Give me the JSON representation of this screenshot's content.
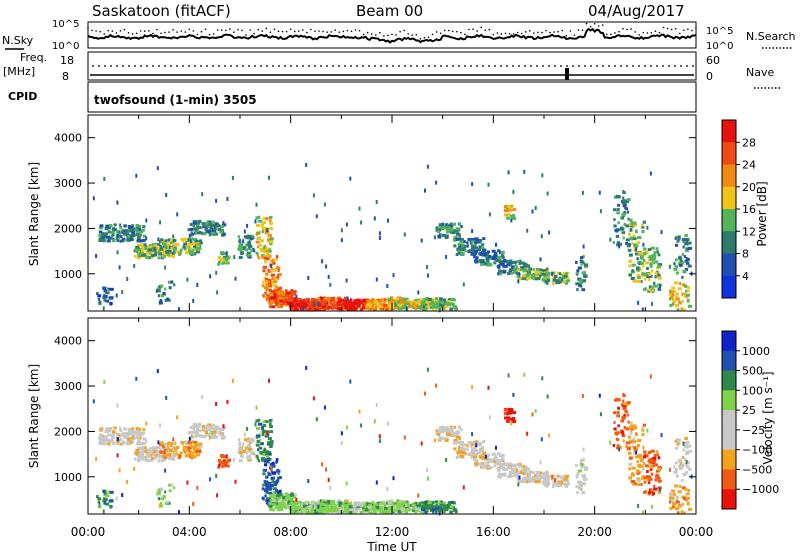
{
  "header": {
    "site": "Saskatoon (fitACF)",
    "beam": "Beam 00",
    "date": "04/Aug/2017"
  },
  "noise_panel": {
    "left_label": "N.Sky",
    "left_ticks": [
      "10^5",
      "10^0"
    ],
    "right_ticks": [
      "10^5",
      "10^0"
    ],
    "right_label": "N.Search"
  },
  "freq_panel": {
    "left_label_1": "Freq.",
    "left_label_2": "[MHz]",
    "left_ticks": [
      "18",
      "8"
    ],
    "right_ticks": [
      "60",
      "0"
    ],
    "right_label": "Nave"
  },
  "cpid_panel": {
    "label": "CPID",
    "program": "twofsound (1-min) 3505"
  },
  "colors": {
    "power": [
      "#1133dd",
      "#1f4fb0",
      "#2e7a6e",
      "#52b55a",
      "#f0c419",
      "#f28a12",
      "#f04a14",
      "#e8120c"
    ],
    "velocity": [
      "#e8120c",
      "#f05a14",
      "#f2a31c",
      "#c8c8c8",
      "#c8c8c8",
      "#7fd34a",
      "#2e8a4a",
      "#1f4fb0",
      "#1122cc"
    ]
  },
  "chart_data": [
    {
      "type": "heatmap",
      "name": "power",
      "ylabel": "Slant Range [km]",
      "yticks": [
        "1000",
        "2000",
        "3000",
        "4000"
      ],
      "ylim": [
        180,
        4500
      ],
      "xlim": [
        0,
        24
      ],
      "colorbar_label": "Power [dB]",
      "colorbar_ticks": [
        "28",
        "24",
        "20",
        "16",
        "12",
        "8",
        "4"
      ],
      "clim": [
        0,
        32
      ]
    },
    {
      "type": "heatmap",
      "name": "velocity",
      "ylabel": "Slant Range [km]",
      "yticks": [
        "1000",
        "2000",
        "3000",
        "4000"
      ],
      "ylim": [
        180,
        4500
      ],
      "xlim": [
        0,
        24
      ],
      "xticks": [
        "00:00",
        "04:00",
        "08:00",
        "12:00",
        "16:00",
        "20:00",
        "00:00"
      ],
      "xlabel": "Time UT",
      "colorbar_label": "Velocity [m s⁻¹]",
      "colorbar_ticks": [
        "1000",
        "500",
        "100",
        "25",
        "−25",
        "−100",
        "−500",
        "−1000"
      ]
    }
  ]
}
